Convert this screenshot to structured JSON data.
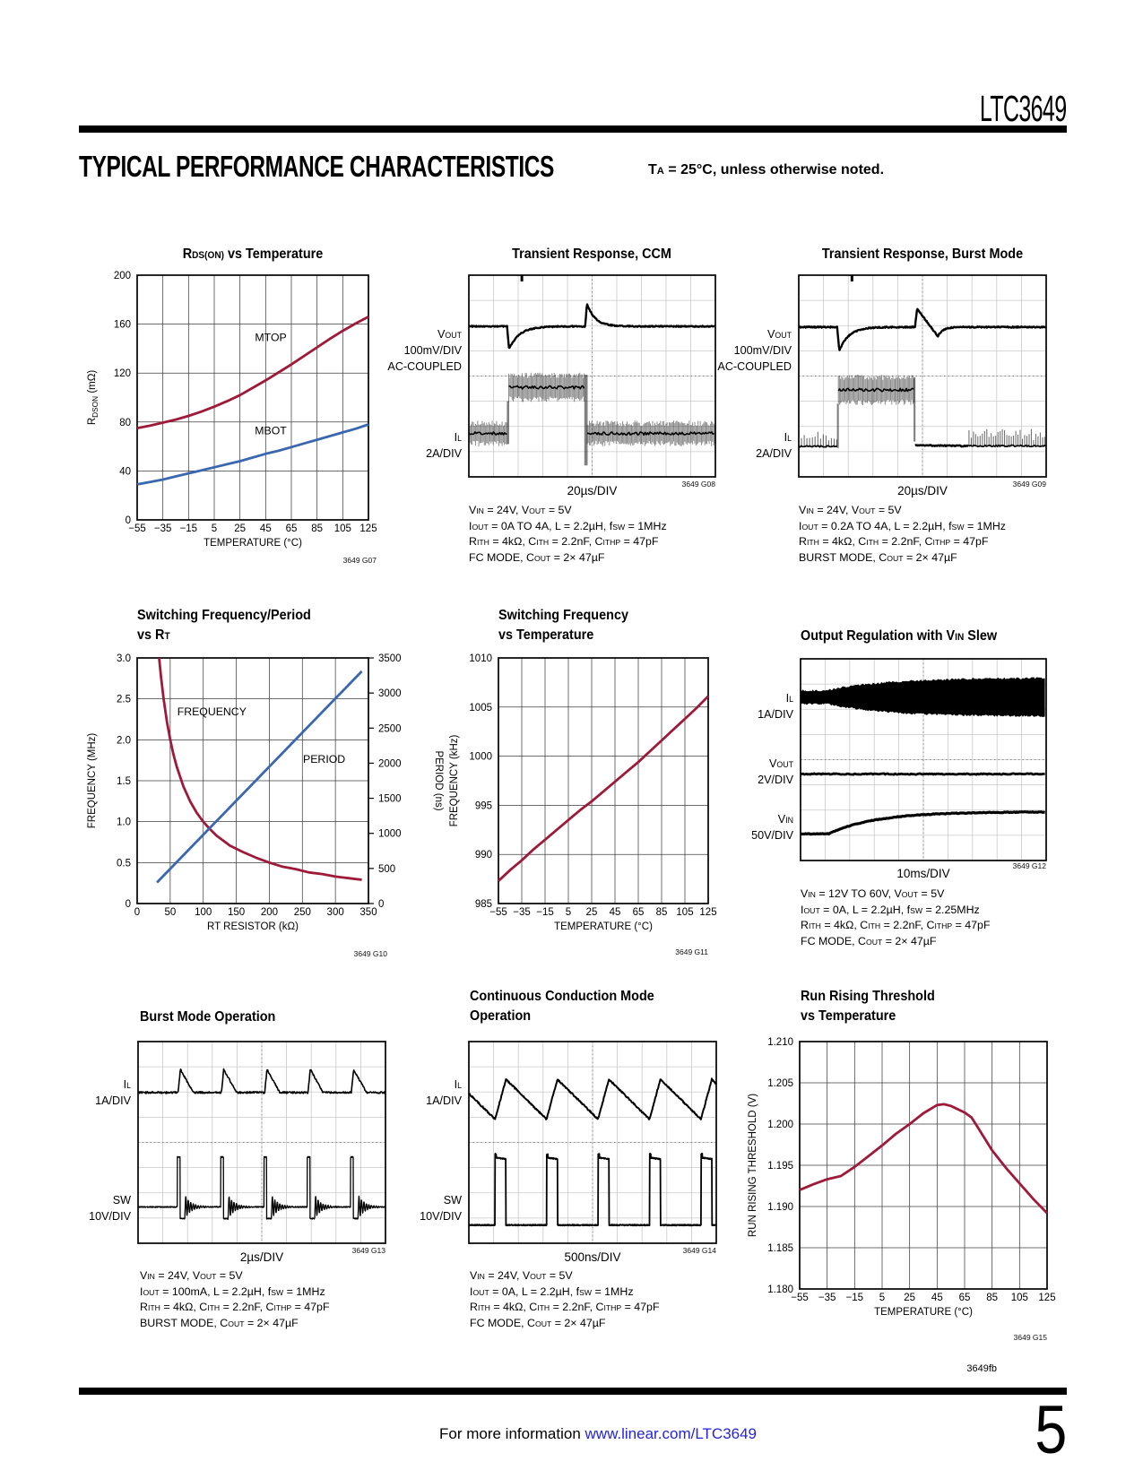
{
  "header": {
    "brand": "LTC3649",
    "title": "TYPICAL PERFORMANCE CHARACTERISTICS",
    "note": "T_{A} = 25°C, unless otherwise noted."
  },
  "footer": {
    "doc_code": "3649fb",
    "page_number": "5",
    "info_prefix": "For more information",
    "info_link": "www.linear.com/LTC3649"
  },
  "colors": {
    "crimson": "#9e1a38",
    "blue": "#3a67b0",
    "link_blue": "#2424dd",
    "scope_grid": "#c9c9c9",
    "chart_grid": "#3f3f3f"
  },
  "chart_data": [
    {
      "id": "g07",
      "type": "line",
      "graph_id": "3649 G07",
      "title_lines": [
        "R_{DS(ON)} vs Temperature"
      ],
      "xlabel": "TEMPERATURE (°C)",
      "ylabel": "R_{DSON} (mΩ)",
      "xlim": [
        -55,
        125
      ],
      "ylim": [
        0,
        200
      ],
      "xticks": [
        -55,
        -35,
        -15,
        5,
        25,
        45,
        65,
        85,
        105,
        125
      ],
      "xtick_labels": [
        "−55",
        "−35",
        "−15",
        "5",
        "25",
        "45",
        "65",
        "85",
        "105",
        "125"
      ],
      "yticks": [
        0,
        40,
        80,
        120,
        160,
        200
      ],
      "ytick_labels": [
        "0",
        "40",
        "80",
        "120",
        "160",
        "200"
      ],
      "series": [
        {
          "name": "MTOP",
          "color": "crimson",
          "x": [
            -55,
            -45,
            -35,
            -25,
            -15,
            -5,
            5,
            15,
            25,
            35,
            45,
            55,
            65,
            75,
            85,
            95,
            105,
            115,
            125
          ],
          "y": [
            75,
            77,
            79.5,
            82,
            85,
            88.5,
            92.5,
            97,
            102,
            108,
            114,
            120.5,
            127,
            134,
            141,
            148,
            154.5,
            160.5,
            166
          ]
        },
        {
          "name": "MBOT",
          "color": "blue",
          "x": [
            -55,
            -45,
            -35,
            -25,
            -15,
            -5,
            5,
            15,
            25,
            35,
            45,
            55,
            65,
            75,
            85,
            95,
            105,
            115,
            125
          ],
          "y": [
            29,
            31,
            33,
            35.5,
            38,
            40.5,
            43,
            45.5,
            48,
            51,
            54,
            56.5,
            59.5,
            62.5,
            65.5,
            68.5,
            71.5,
            74.5,
            78
          ]
        }
      ],
      "series_labels": [
        {
          "text": "MTOP",
          "x": 49,
          "y": 146
        },
        {
          "text": "MBOT",
          "x": 49,
          "y": 70
        }
      ]
    },
    {
      "id": "g08",
      "type": "scope",
      "graph_id": "3649 G08",
      "title_lines": [
        "Transient Response, CCM"
      ],
      "timebase": "20µs/DIV",
      "divisions": [
        10,
        8
      ],
      "channel_labels": [
        [
          "V_{OUT}",
          "100mV/DIV",
          "AC-COUPLED"
        ],
        [
          "I_{L}",
          "2A/DIV"
        ]
      ],
      "waveform": "transient_ccm",
      "conditions": [
        "V_{IN} = 24V, V_{OUT} = 5V",
        "I_{OUT} = 0A TO 4A, L = 2.2µH, f_{SW} = 1MHz",
        "R_{ITH} = 4kΩ, C_{ITH} = 2.2nF, C_{ITHP} = 47pF",
        "FC MODE, C_{OUT} = 2× 47µF"
      ]
    },
    {
      "id": "g09",
      "type": "scope",
      "graph_id": "3649 G09",
      "title_lines": [
        "Transient Response, Burst Mode"
      ],
      "timebase": "20µs/DIV",
      "divisions": [
        10,
        8
      ],
      "channel_labels": [
        [
          "V_{OUT}",
          "100mV/DIV",
          "AC-COUPLED"
        ],
        [
          "I_{L}",
          "2A/DIV"
        ]
      ],
      "waveform": "transient_burst",
      "conditions": [
        "V_{IN} = 24V, V_{OUT} = 5V",
        "I_{OUT} = 0.2A TO 4A, L = 2.2µH, f_{SW} = 1MHz",
        "R_{ITH} = 4kΩ, C_{ITH} = 2.2nF, C_{ITHP} = 47pF",
        "BURST MODE, C_{OUT} = 2× 47µF"
      ]
    },
    {
      "id": "g10",
      "type": "line",
      "graph_id": "3649 G10",
      "title_lines": [
        "Switching Frequency/Period",
        "vs R_{T}"
      ],
      "xlabel": "RT RESISTOR (kΩ)",
      "ylabel": "FREQUENCY (MHz)",
      "y2label": "PERIOD (ns)",
      "xlim": [
        0,
        350
      ],
      "ylim": [
        0,
        3
      ],
      "y2lim": [
        0,
        3500
      ],
      "xticks": [
        0,
        50,
        100,
        150,
        200,
        250,
        300,
        350
      ],
      "xtick_labels": [
        "0",
        "50",
        "100",
        "150",
        "200",
        "250",
        "300",
        "350"
      ],
      "yticks": [
        0,
        0.5,
        1,
        1.5,
        2,
        2.5,
        3
      ],
      "ytick_labels": [
        "0",
        "0.5",
        "1.0",
        "1.5",
        "2.0",
        "2.5",
        "3.0"
      ],
      "y2ticks": [
        0,
        500,
        1000,
        1500,
        2000,
        2500,
        3000,
        3500
      ],
      "y2tick_labels": [
        "0",
        "500",
        "1000",
        "1500",
        "2000",
        "2500",
        "3000",
        "3500"
      ],
      "series": [
        {
          "name": "FREQUENCY",
          "color": "crimson",
          "x": [
            33.3,
            36,
            40,
            45,
            50,
            55,
            60,
            70,
            80,
            90,
            100,
            110,
            120,
            140,
            160,
            180,
            200,
            220,
            240,
            260,
            280,
            300,
            320,
            340
          ],
          "y": [
            3,
            2.78,
            2.5,
            2.22,
            2,
            1.82,
            1.67,
            1.43,
            1.25,
            1.11,
            1,
            0.91,
            0.83,
            0.71,
            0.63,
            0.56,
            0.5,
            0.45,
            0.42,
            0.38,
            0.36,
            0.33,
            0.31,
            0.29
          ]
        },
        {
          "name": "PERIOD",
          "color": "blue",
          "axis": "y2",
          "x": [
            30,
            340
          ],
          "y": [
            300,
            3310
          ]
        }
      ],
      "series_labels": [
        {
          "text": "FREQUENCY",
          "x": 113,
          "y": 2.3
        },
        {
          "text": "PERIOD",
          "x": 283,
          "y": 1.72
        }
      ]
    },
    {
      "id": "g11",
      "type": "line",
      "graph_id": "3649 G11",
      "title_lines": [
        "Switching Frequency",
        "vs Temperature"
      ],
      "xlabel": "TEMPERATURE (°C)",
      "ylabel": "FREQUENCY (kHz)",
      "xlim": [
        -55,
        125
      ],
      "ylim": [
        985,
        1010
      ],
      "xticks": [
        -55,
        -35,
        -15,
        5,
        25,
        45,
        65,
        85,
        105,
        125
      ],
      "xtick_labels": [
        "−55",
        "−35",
        "−15",
        "5",
        "25",
        "45",
        "65",
        "85",
        "105",
        "125"
      ],
      "yticks": [
        985,
        990,
        995,
        1000,
        1005,
        1010
      ],
      "ytick_labels": [
        "985",
        "990",
        "995",
        "1000",
        "1005",
        "1010"
      ],
      "series": [
        {
          "name": "FREQUENCY",
          "color": "crimson",
          "x": [
            -55,
            -45,
            -35,
            -25,
            -15,
            -5,
            5,
            15,
            25,
            35,
            45,
            55,
            65,
            75,
            85,
            95,
            105,
            115,
            125
          ],
          "y": [
            987.3,
            988.4,
            989.4,
            990.5,
            991.5,
            992.5,
            993.5,
            994.5,
            995.4,
            996.4,
            997.4,
            998.4,
            999.4,
            1000.5,
            1001.6,
            1002.7,
            1003.8,
            1004.9,
            1006.1
          ]
        }
      ],
      "series_labels": []
    },
    {
      "id": "g12",
      "type": "scope",
      "graph_id": "3649 G12",
      "title_lines": [
        "Output Regulation with V_{IN} Slew"
      ],
      "timebase": "10ms/DIV",
      "divisions": [
        10,
        8
      ],
      "channel_labels": [
        [
          "I_{L}",
          "1A/DIV"
        ],
        [
          "V_{OUT}",
          "2V/DIV"
        ],
        [
          "V_{IN}",
          "50V/DIV"
        ]
      ],
      "waveform": "vin_slew",
      "conditions": [
        "V_{IN} = 12V TO 60V, V_{OUT} = 5V",
        "I_{OUT} = 0A, L = 2.2µH, f_{SW} = 2.25MHz",
        "R_{ITH} = 4kΩ, C_{ITH} = 2.2nF, C_{ITHP} = 47pF",
        "FC MODE, C_{OUT} = 2× 47µF"
      ]
    },
    {
      "id": "g13",
      "type": "scope",
      "graph_id": "3649 G13",
      "title_lines": [
        "Burst Mode Operation"
      ],
      "timebase": "2µs/DIV",
      "divisions": [
        10,
        8
      ],
      "channel_labels": [
        [
          "I_{L}",
          "1A/DIV"
        ],
        [
          "SW",
          "10V/DIV"
        ]
      ],
      "waveform": "burst_op",
      "conditions": [
        "V_{IN} = 24V, V_{OUT} = 5V",
        "I_{OUT} = 100mA, L = 2.2µH, f_{SW} = 1MHz",
        "R_{ITH} = 4kΩ, C_{ITH} = 2.2nF, C_{ITHP} = 47pF",
        "BURST MODE, C_{OUT} = 2× 47µF"
      ]
    },
    {
      "id": "g14",
      "type": "scope",
      "graph_id": "3649 G14",
      "title_lines": [
        "Continuous Conduction Mode",
        "Operation"
      ],
      "timebase": "500ns/DIV",
      "divisions": [
        10,
        8
      ],
      "channel_labels": [
        [
          "I_{L}",
          "1A/DIV"
        ],
        [
          "SW",
          "10V/DIV"
        ]
      ],
      "waveform": "ccm_op",
      "conditions": [
        "V_{IN} = 24V, V_{OUT} = 5V",
        "I_{OUT} = 0A, L = 2.2µH, f_{SW} = 1MHz",
        "R_{ITH} = 4kΩ, C_{ITH} = 2.2nF, C_{ITHP} = 47pF",
        "FC MODE, C_{OUT} = 2× 47µF"
      ]
    },
    {
      "id": "g15",
      "type": "line",
      "graph_id": "3649 G15",
      "title_lines": [
        "Run Rising Threshold",
        "vs Temperature"
      ],
      "xlabel": "TEMPERATURE (°C)",
      "ylabel": "RUN RISING THRESHOLD (V)",
      "xlim": [
        -55,
        125
      ],
      "ylim": [
        1.18,
        1.21
      ],
      "xticks": [
        -55,
        -35,
        -15,
        5,
        25,
        45,
        65,
        85,
        105,
        125
      ],
      "xtick_labels": [
        "−55",
        "−35",
        "−15",
        "5",
        "25",
        "45",
        "65",
        "85",
        "105",
        "125"
      ],
      "yticks": [
        1.18,
        1.185,
        1.19,
        1.195,
        1.2,
        1.205,
        1.21
      ],
      "ytick_labels": [
        "1.180",
        "1.185",
        "1.190",
        "1.195",
        "1.200",
        "1.205",
        "1.210"
      ],
      "series": [
        {
          "name": "RUN RISING THRESHOLD",
          "color": "crimson",
          "x": [
            -55,
            -45,
            -35,
            -25,
            -15,
            -5,
            5,
            15,
            25,
            35,
            45,
            50,
            55,
            65,
            70,
            75,
            85,
            95,
            105,
            115,
            125
          ],
          "y": [
            1.192,
            1.1927,
            1.1933,
            1.1937,
            1.1948,
            1.1961,
            1.1974,
            1.1988,
            1.2,
            1.2013,
            1.2023,
            1.2024,
            1.2022,
            1.2014,
            1.2008,
            1.1995,
            1.1968,
            1.1947,
            1.1928,
            1.1909,
            1.1892
          ]
        }
      ],
      "series_labels": []
    }
  ]
}
